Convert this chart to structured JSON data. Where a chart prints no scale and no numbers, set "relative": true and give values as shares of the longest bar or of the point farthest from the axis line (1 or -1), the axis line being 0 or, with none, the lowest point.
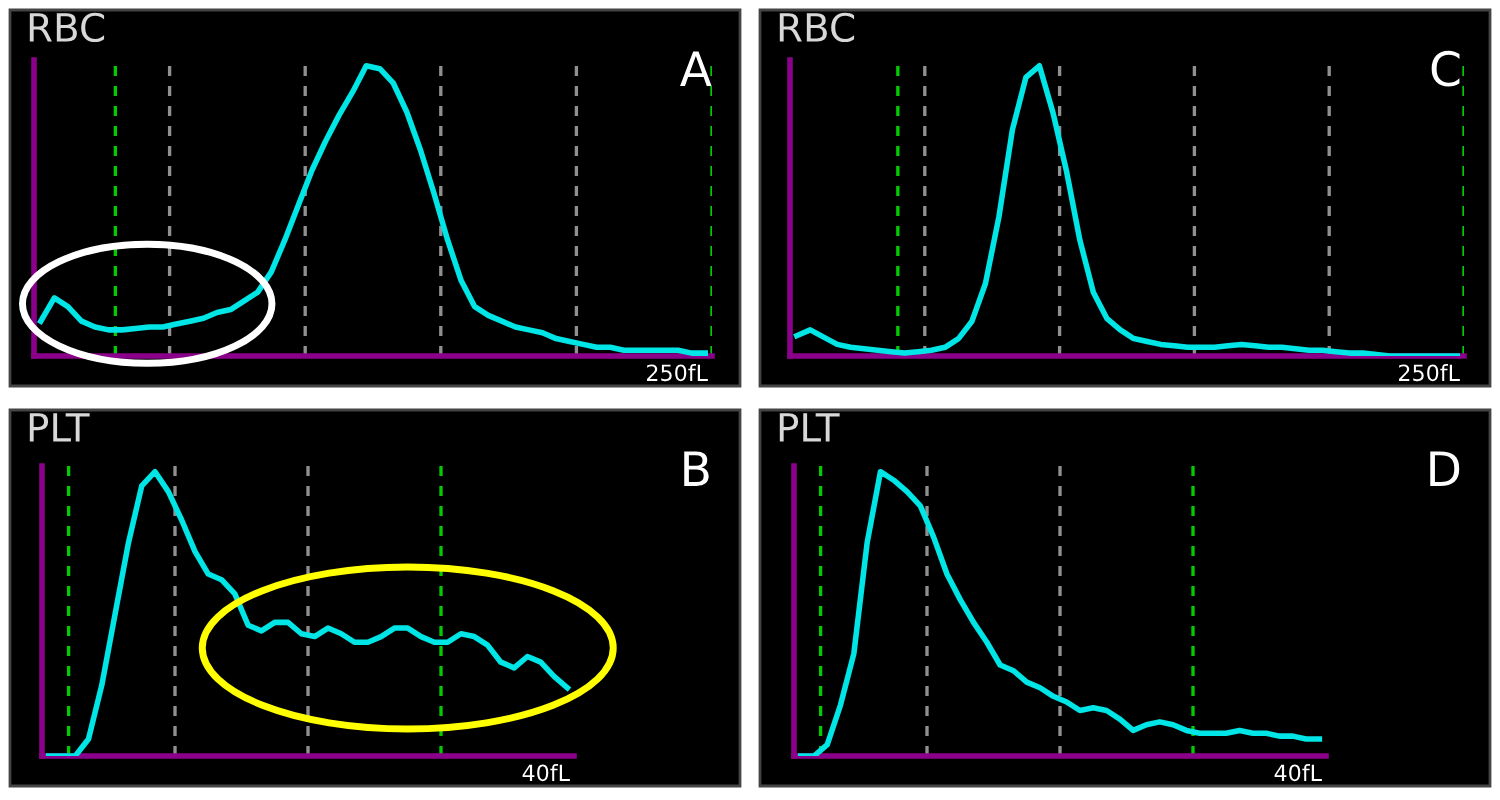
{
  "chart_data": [
    {
      "type": "line",
      "title": "RBC",
      "annotations": [
        "A",
        "250fL"
      ],
      "relative": true,
      "line_style": "solid",
      "marker": "none",
      "categories": [
        null,
        null,
        null,
        null,
        null,
        null,
        null,
        null,
        null,
        null,
        null,
        null,
        null,
        null,
        null,
        null,
        null,
        null,
        null,
        null,
        null,
        null,
        null,
        null,
        null,
        null,
        null,
        null,
        null,
        null,
        null,
        null,
        null,
        null,
        null,
        null,
        null,
        null,
        null,
        null,
        null,
        null,
        null,
        null,
        null,
        null,
        null,
        null,
        null,
        null
      ],
      "series": [
        {
          "color": "#00e5e5",
          "values": [
            0.12,
            0.2,
            0.17,
            0.12,
            0.1,
            0.09,
            0.09,
            0.095,
            0.1,
            0.1,
            0.11,
            0.12,
            0.13,
            0.15,
            0.16,
            0.19,
            0.22,
            0.29,
            0.4,
            0.52,
            0.64,
            0.74,
            0.83,
            0.91,
            1.0,
            0.99,
            0.94,
            0.84,
            0.71,
            0.56,
            0.4,
            0.26,
            0.17,
            0.14,
            0.12,
            0.1,
            0.09,
            0.08,
            0.06,
            0.05,
            0.04,
            0.03,
            0.03,
            0.02,
            0.02,
            0.02,
            0.02,
            0.02,
            0.01,
            0.01
          ]
        }
      ]
    },
    {
      "type": "line",
      "title": "RBC",
      "annotations": [
        "C",
        "250fL"
      ],
      "relative": true,
      "line_style": "solid",
      "marker": "none",
      "categories": [
        null,
        null,
        null,
        null,
        null,
        null,
        null,
        null,
        null,
        null,
        null,
        null,
        null,
        null,
        null,
        null,
        null,
        null,
        null,
        null,
        null,
        null,
        null,
        null,
        null,
        null,
        null,
        null,
        null,
        null,
        null,
        null,
        null,
        null,
        null,
        null,
        null,
        null,
        null,
        null,
        null,
        null,
        null,
        null,
        null,
        null,
        null,
        null,
        null,
        null
      ],
      "series": [
        {
          "color": "#00e5e5",
          "values": [
            0.07,
            0.09,
            0.065,
            0.04,
            0.03,
            0.025,
            0.02,
            0.015,
            0.01,
            0.015,
            0.02,
            0.03,
            0.06,
            0.12,
            0.25,
            0.48,
            0.78,
            0.96,
            1.0,
            0.84,
            0.64,
            0.4,
            0.22,
            0.13,
            0.09,
            0.06,
            0.05,
            0.04,
            0.035,
            0.03,
            0.03,
            0.03,
            0.035,
            0.04,
            0.035,
            0.03,
            0.03,
            0.025,
            0.02,
            0.02,
            0.015,
            0.01,
            0.01,
            0.005,
            0,
            0,
            0,
            0,
            0,
            0
          ]
        }
      ]
    },
    {
      "type": "line",
      "title": "PLT",
      "annotations": [
        "B",
        "40fL"
      ],
      "relative": true,
      "line_style": "solid",
      "marker": "none",
      "categories": [
        null,
        null,
        null,
        null,
        null,
        null,
        null,
        null,
        null,
        null,
        null,
        null,
        null,
        null,
        null,
        null,
        null,
        null,
        null,
        null,
        null,
        null,
        null,
        null,
        null,
        null,
        null,
        null,
        null,
        null,
        null,
        null,
        null,
        null,
        null,
        null,
        null,
        null,
        null,
        null
      ],
      "series": [
        {
          "color": "#00e5e5",
          "values": [
            0,
            0,
            0,
            0.06,
            0.25,
            0.5,
            0.75,
            0.95,
            1.0,
            0.93,
            0.83,
            0.72,
            0.64,
            0.62,
            0.57,
            0.46,
            0.44,
            0.47,
            0.47,
            0.43,
            0.42,
            0.45,
            0.43,
            0.4,
            0.4,
            0.42,
            0.45,
            0.45,
            0.42,
            0.4,
            0.4,
            0.43,
            0.42,
            0.39,
            0.33,
            0.31,
            0.35,
            0.33,
            0.28,
            0.24
          ]
        }
      ]
    },
    {
      "type": "line",
      "title": "PLT",
      "annotations": [
        "D",
        "40fL"
      ],
      "relative": true,
      "line_style": "solid",
      "marker": "none",
      "categories": [
        null,
        null,
        null,
        null,
        null,
        null,
        null,
        null,
        null,
        null,
        null,
        null,
        null,
        null,
        null,
        null,
        null,
        null,
        null,
        null,
        null,
        null,
        null,
        null,
        null,
        null,
        null,
        null,
        null,
        null,
        null,
        null,
        null,
        null,
        null,
        null,
        null,
        null,
        null,
        null
      ],
      "series": [
        {
          "color": "#00e5e5",
          "values": [
            0,
            0,
            0.04,
            0.18,
            0.36,
            0.75,
            1.0,
            0.97,
            0.93,
            0.88,
            0.77,
            0.64,
            0.55,
            0.47,
            0.4,
            0.32,
            0.3,
            0.26,
            0.24,
            0.21,
            0.19,
            0.16,
            0.17,
            0.16,
            0.13,
            0.09,
            0.11,
            0.12,
            0.11,
            0.09,
            0.08,
            0.08,
            0.08,
            0.09,
            0.08,
            0.08,
            0.07,
            0.07,
            0.06,
            0.06
          ]
        }
      ]
    }
  ]
}
